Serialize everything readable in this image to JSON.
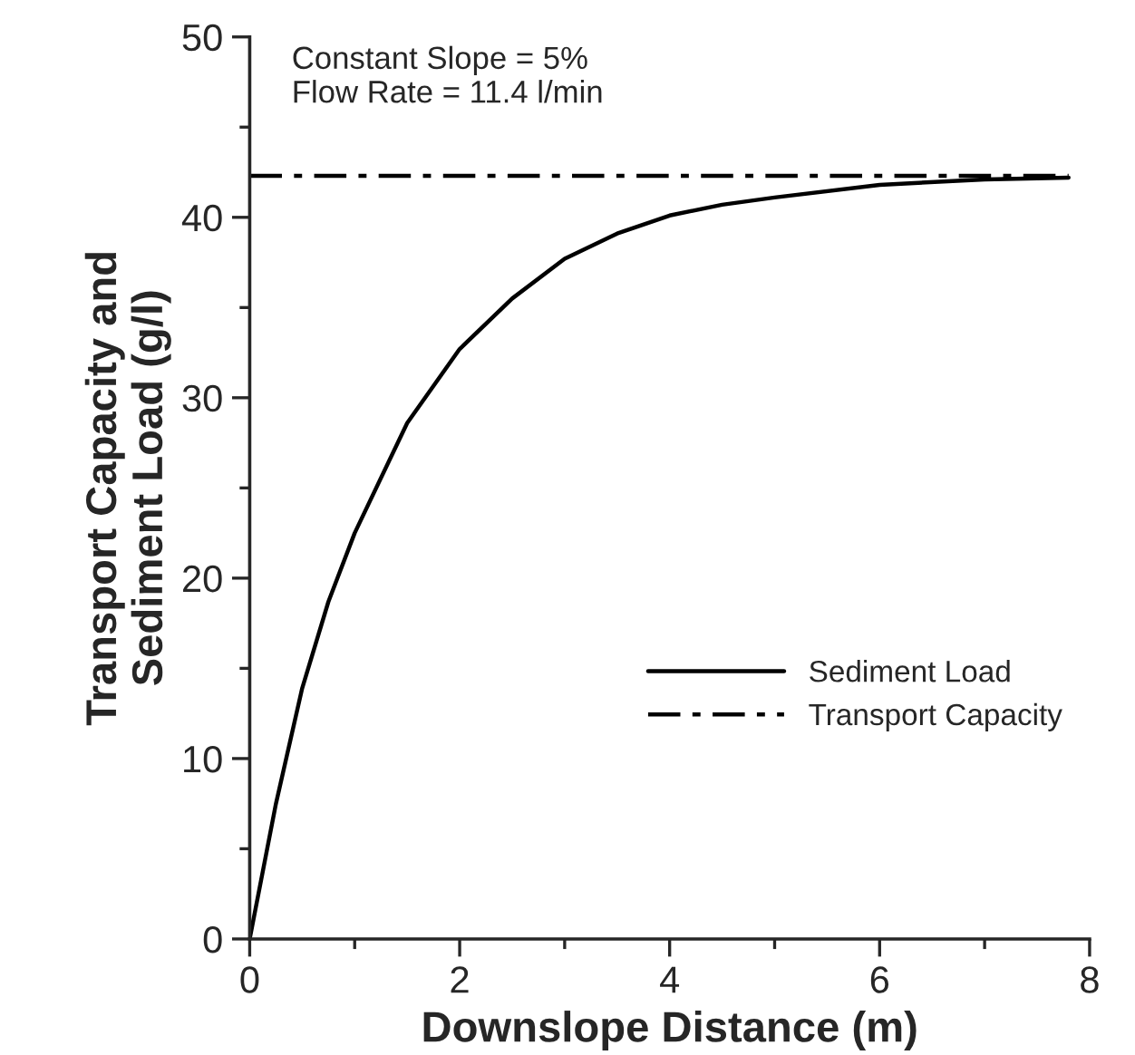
{
  "chart_data": {
    "type": "line",
    "xlabel": "Downslope Distance (m)",
    "ylabel": "Transport Capacity and\nSediment Load (g/l)",
    "annotations": [
      "Constant Slope = 5%\nFlow Rate = 11.4 l/min"
    ],
    "series": [
      {
        "name": "Sediment Load",
        "color": "#000000",
        "line_style": "solid",
        "x": [
          0,
          0.25,
          0.5,
          0.75,
          1,
          1.5,
          2,
          2.5,
          3,
          3.5,
          4,
          4.5,
          5,
          6,
          7,
          7.8
        ],
        "values": [
          0,
          7.5,
          13.9,
          18.7,
          22.5,
          28.6,
          32.7,
          35.5,
          37.7,
          39.1,
          40.1,
          40.7,
          41.1,
          41.8,
          42.1,
          42.2
        ]
      },
      {
        "name": "Transport Capacity",
        "color": "#000000",
        "line_style": "dashdot",
        "x": [
          0,
          7.8
        ],
        "values": [
          42.3,
          42.3
        ]
      }
    ],
    "xlim": [
      0,
      8
    ],
    "xticks": [
      0,
      2,
      4,
      6,
      8
    ],
    "ylim": [
      0,
      50
    ],
    "yticks": [
      0,
      10,
      20,
      30,
      40,
      50
    ],
    "grid": false,
    "legend": "bottom right",
    "marker": "none"
  }
}
